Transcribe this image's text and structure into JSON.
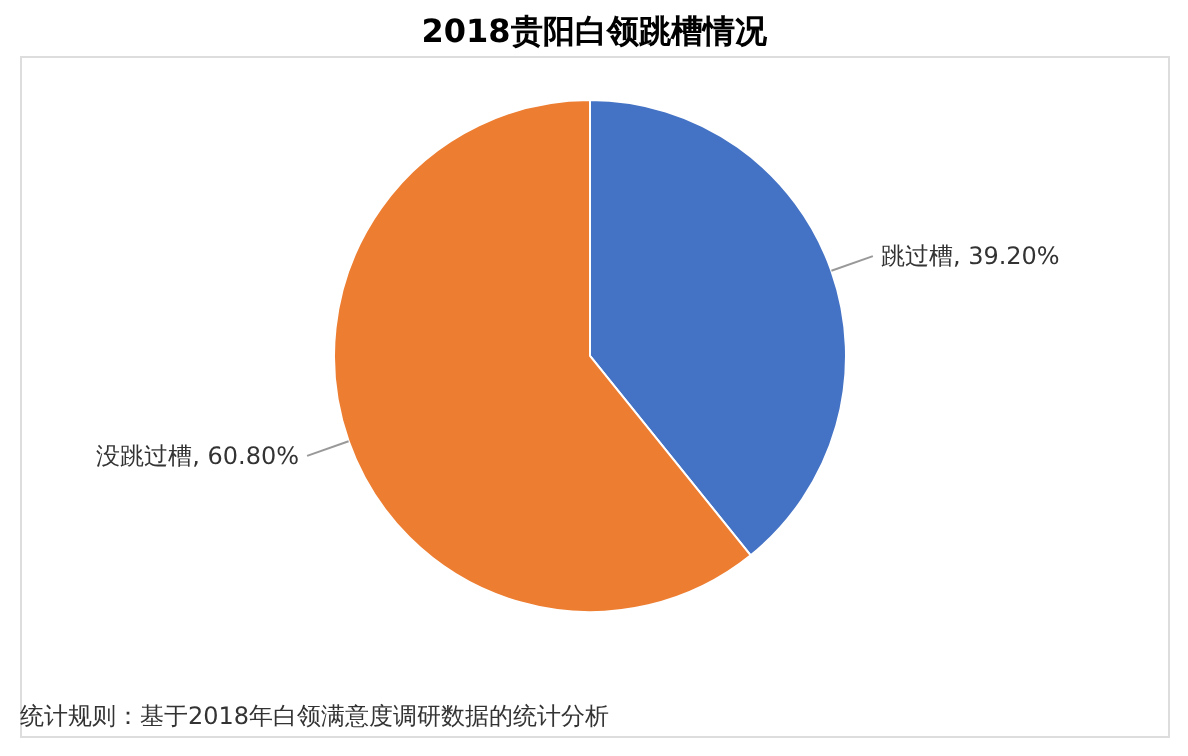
{
  "chart_data": {
    "type": "pie",
    "title": "2018贵阳白领跳槽情况",
    "categories": [
      "跳过槽",
      "没跳过槽"
    ],
    "values": [
      39.2,
      60.8
    ],
    "colors": [
      "#4472c4",
      "#ed7d31"
    ],
    "value_labels": [
      "39.20%",
      "60.80%"
    ],
    "legend": false,
    "annotations": [
      "统计规则：基于2018年白领满意度调研数据的统计分析"
    ]
  }
}
